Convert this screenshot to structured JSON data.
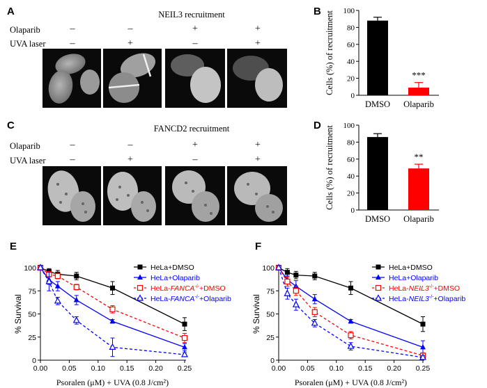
{
  "panels": {
    "A": {
      "letter": "A",
      "title": "NEIL3 recruitment",
      "rows": [
        {
          "label": "Olaparib",
          "signs": [
            "–",
            "–",
            "+",
            "+"
          ]
        },
        {
          "label": "UVA laser",
          "signs": [
            "–",
            "+",
            "–",
            "+"
          ]
        }
      ]
    },
    "C": {
      "letter": "C",
      "title": "FANCD2 recruitment",
      "rows": [
        {
          "label": "Olaparib",
          "signs": [
            "–",
            "–",
            "+",
            "+"
          ]
        },
        {
          "label": "UVA laser",
          "signs": [
            "–",
            "+",
            "–",
            "+"
          ]
        }
      ]
    },
    "B": {
      "letter": "B"
    },
    "D": {
      "letter": "D"
    },
    "E": {
      "letter": "E"
    },
    "F": {
      "letter": "F"
    }
  },
  "chart_data": [
    {
      "id": "B",
      "type": "bar",
      "categories": [
        "DMSO",
        "Olaparib"
      ],
      "values": [
        88,
        9
      ],
      "errors": [
        4,
        6
      ],
      "colors": [
        "#000000",
        "#ff0000"
      ],
      "ylabel": "Cells (%) of recruitment",
      "ylim": [
        0,
        100
      ],
      "yticks": [
        "0",
        "20",
        "40",
        "60",
        "80",
        "100"
      ],
      "significance": "***"
    },
    {
      "id": "D",
      "type": "bar",
      "categories": [
        "DMSO",
        "Olaparib"
      ],
      "values": [
        86,
        49
      ],
      "errors": [
        4,
        5
      ],
      "colors": [
        "#000000",
        "#ff0000"
      ],
      "ylabel": "Cells (%) of recruitment",
      "ylim": [
        0,
        100
      ],
      "yticks": [
        "0",
        "20",
        "40",
        "60",
        "80",
        "100"
      ],
      "significance": "**"
    },
    {
      "id": "E",
      "type": "line",
      "xlabel": "Psoralen (μM) + UVA (0.8 J/cm²)",
      "ylabel": "% Survival",
      "xlim": [
        0,
        0.25
      ],
      "ylim": [
        0,
        100
      ],
      "xticks": [
        "0.00",
        "0.05",
        "0.10",
        "0.15",
        "0.20",
        "0.25"
      ],
      "yticks": [
        "0",
        "25",
        "50",
        "75",
        "100"
      ],
      "x": [
        0,
        0.015,
        0.03,
        0.0625,
        0.125,
        0.25
      ],
      "series": [
        {
          "prefix": "HeLa+DMSO",
          "italic": "",
          "sup": "",
          "suffix": "",
          "color": "#000000",
          "marker": "square-filled",
          "dash": false,
          "values": [
            100,
            96,
            93,
            91,
            78,
            39
          ],
          "errors": [
            2,
            3,
            4,
            4,
            7,
            7
          ]
        },
        {
          "prefix": "HeLa+Olaparib",
          "italic": "",
          "sup": "",
          "suffix": "",
          "color": "#0000ff",
          "marker": "triangle-filled",
          "dash": false,
          "values": [
            100,
            87,
            80,
            65,
            42,
            14
          ],
          "errors": [
            2,
            5,
            5,
            5,
            2,
            4
          ]
        },
        {
          "prefix": "HeLa-",
          "italic": "FANCA",
          "sup": "-/-",
          "suffix": "+DMSO",
          "color": "#ff0000",
          "marker": "square-open",
          "dash": true,
          "values": [
            100,
            93,
            91,
            79,
            55,
            24
          ],
          "errors": [
            2,
            3,
            3,
            3,
            4,
            5
          ]
        },
        {
          "prefix": "HeLa-",
          "italic": "FANCA",
          "sup": "-/-",
          "suffix": "+Olaparib",
          "color": "#0000ff",
          "marker": "triangle-open",
          "dash": true,
          "values": [
            100,
            85,
            64,
            43,
            14,
            6
          ],
          "errors": [
            2,
            10,
            4,
            4,
            10,
            2
          ]
        }
      ]
    },
    {
      "id": "F",
      "type": "line",
      "xlabel": "Psoralen (μM) + UVA (0.8 J/cm²)",
      "ylabel": "% Survival",
      "xlim": [
        0,
        0.25
      ],
      "ylim": [
        0,
        100
      ],
      "xticks": [
        "0.00",
        "0.05",
        "0.10",
        "0.15",
        "0.20",
        "0.25"
      ],
      "yticks": [
        "0",
        "25",
        "50",
        "75",
        "100"
      ],
      "x": [
        0,
        0.015,
        0.03,
        0.0625,
        0.125,
        0.25
      ],
      "series": [
        {
          "prefix": "HeLa+DMSO",
          "italic": "",
          "sup": "",
          "suffix": "",
          "color": "#000000",
          "marker": "square-filled",
          "dash": false,
          "values": [
            100,
            95,
            92,
            91,
            78,
            39
          ],
          "errors": [
            2,
            4,
            4,
            4,
            7,
            8
          ]
        },
        {
          "prefix": "HeLa+Olaparib",
          "italic": "",
          "sup": "",
          "suffix": "",
          "color": "#0000ff",
          "marker": "triangle-filled",
          "dash": false,
          "values": [
            100,
            87,
            80,
            66,
            42,
            14
          ],
          "errors": [
            2,
            4,
            6,
            5,
            2,
            7
          ]
        },
        {
          "prefix": "HeLa-",
          "italic": "NEIL3",
          "sup": "-/-",
          "suffix": "+DMSO",
          "color": "#ff0000",
          "marker": "square-open",
          "dash": true,
          "values": [
            100,
            85,
            75,
            52,
            27,
            5
          ],
          "errors": [
            2,
            5,
            5,
            5,
            4,
            3
          ]
        },
        {
          "prefix": "HeLa-",
          "italic": "NEIL3",
          "sup": "-/-",
          "suffix": "+Olaparib",
          "color": "#0000ff",
          "marker": "triangle-open",
          "dash": true,
          "values": [
            100,
            72,
            60,
            40,
            15,
            3
          ],
          "errors": [
            2,
            6,
            6,
            4,
            4,
            2
          ]
        }
      ]
    }
  ]
}
